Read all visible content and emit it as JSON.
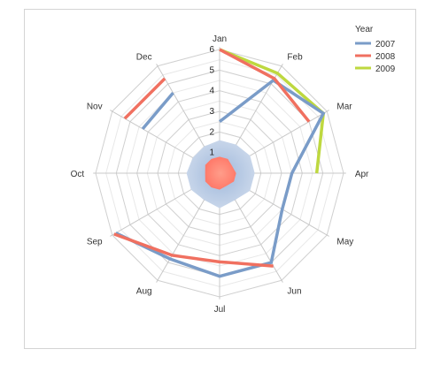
{
  "chart_data": {
    "type": "radar",
    "categories": [
      "Jan",
      "Feb",
      "Mar",
      "Apr",
      "May",
      "Jun",
      "Jul",
      "Aug",
      "Sep",
      "Oct",
      "Nov",
      "Dec"
    ],
    "rlim": [
      0,
      6
    ],
    "ticks": [
      "1",
      "2",
      "3",
      "4",
      "5",
      "6"
    ],
    "grid": true,
    "legend": {
      "title": "Year",
      "position": "top-right"
    },
    "series": [
      {
        "name": "2007",
        "color": "#7a9cc8",
        "values": [
          2.5,
          5.2,
          5.8,
          3.5,
          3.5,
          5.0,
          5.0,
          4.8,
          5.8,
          null,
          4.3,
          4.5
        ]
      },
      {
        "name": "2008",
        "color": "#f07060",
        "values": [
          6.0,
          5.3,
          5.0,
          null,
          null,
          5.2,
          4.3,
          4.6,
          5.9,
          null,
          5.3,
          5.3
        ]
      },
      {
        "name": "2009",
        "color": "#bed83f",
        "values": [
          6.0,
          5.6,
          5.8,
          4.7,
          null,
          null,
          null,
          null,
          null,
          null,
          null,
          null
        ]
      }
    ],
    "center_area": {
      "blue_values": [
        1.6,
        1.6,
        1.7,
        1.7,
        1.7,
        1.5,
        1.7,
        1.5,
        1.6,
        1.6,
        1.5,
        1.5
      ],
      "red_values": [
        0.8,
        0.8,
        0.7,
        0.8,
        0.8,
        0.7,
        0.8,
        0.8,
        0.8,
        0.7,
        0.8,
        0.8
      ],
      "blue_color": "#7f9fcc",
      "red_color": "#ff7f6f"
    }
  }
}
